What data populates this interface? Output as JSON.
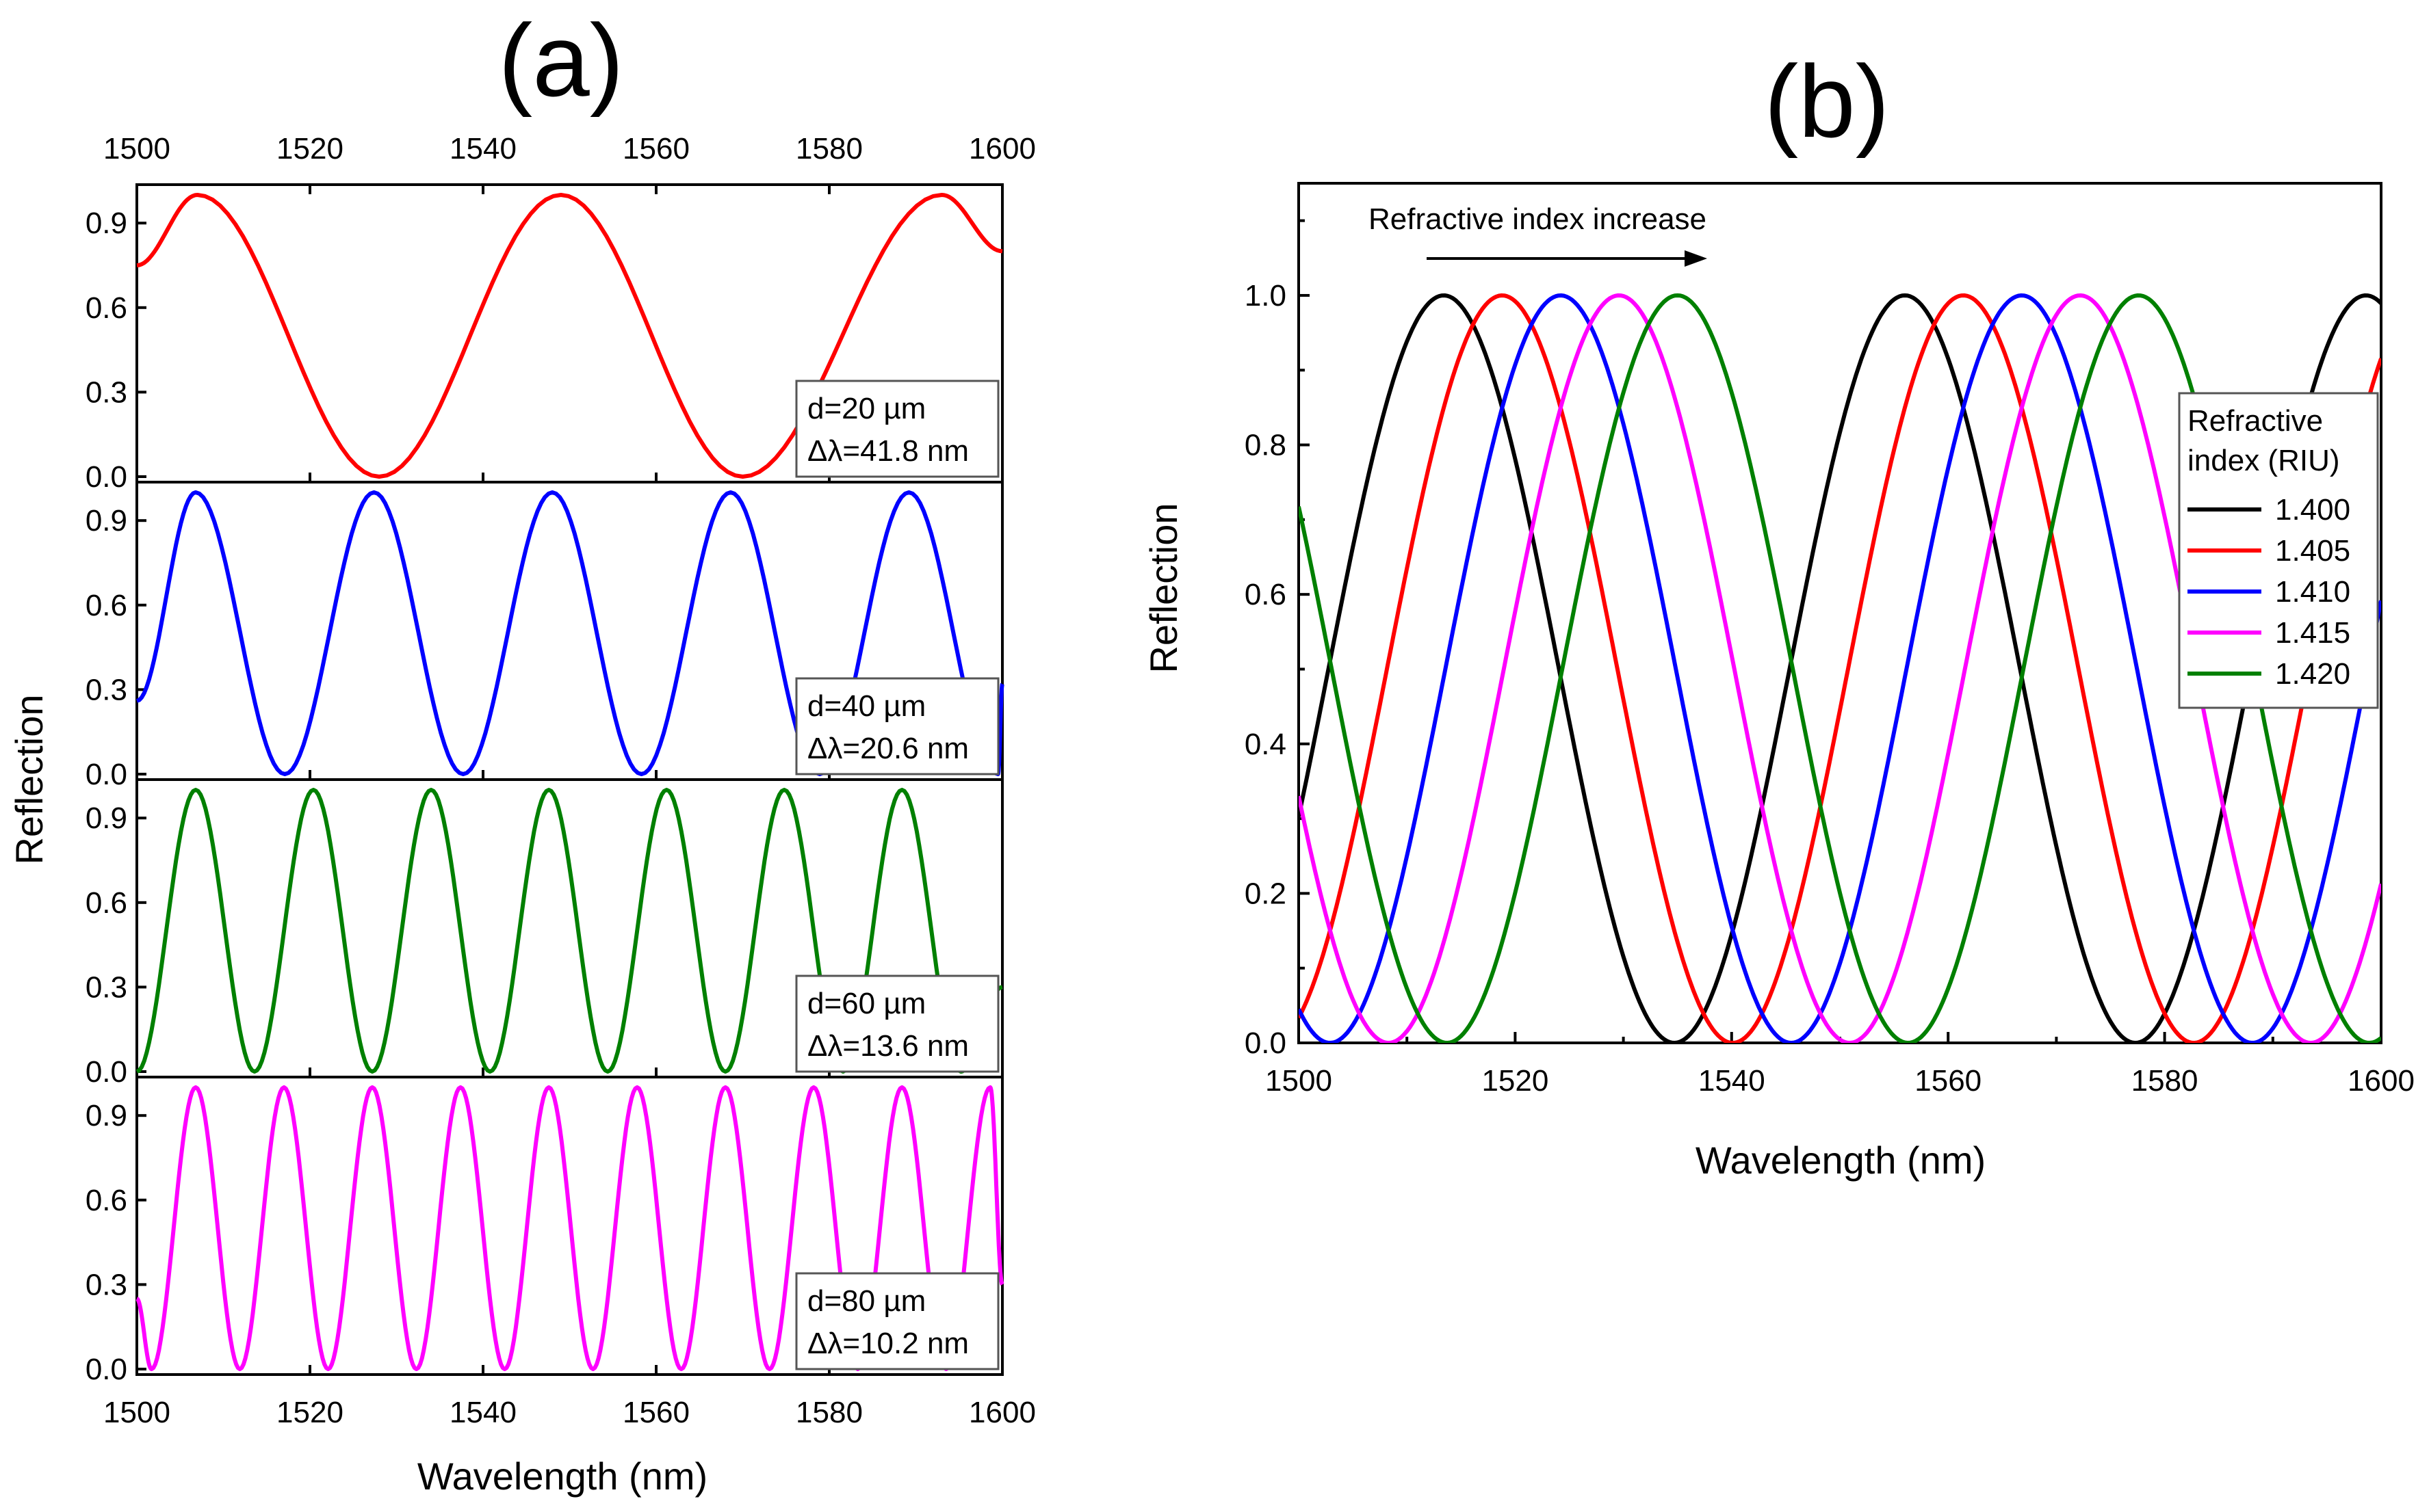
{
  "chart_data": [
    {
      "panel_label": "(a)",
      "type": "line",
      "xlabel": "Wavelength (nm)",
      "ylabel": "Reflection",
      "xlim": [
        1500,
        1600
      ],
      "xticks": [
        1500,
        1520,
        1540,
        1560,
        1580,
        1600
      ],
      "yticks": [
        0.0,
        0.3,
        0.6,
        0.9
      ],
      "ylim": [
        0,
        1
      ],
      "subplots": [
        {
          "color": "#ff0000",
          "annotation": [
            "d=20 µm",
            "Δλ=41.8 nm"
          ],
          "x": [
            1500,
            1507,
            1528,
            1549,
            1570,
            1593,
            1600
          ],
          "y": [
            0.75,
            1.0,
            0.0,
            1.0,
            0.0,
            1.0,
            0.8
          ]
        },
        {
          "color": "#0000ff",
          "annotation": [
            "d=40 µm",
            "Δλ=20.6 nm"
          ],
          "x": [
            1500,
            1506.8,
            1517.1,
            1527.4,
            1537.7,
            1548.0,
            1558.3,
            1568.6,
            1578.9,
            1589.2,
            1599.5,
            1600
          ],
          "y": [
            0.26,
            1.0,
            0.0,
            1.0,
            0.0,
            1.0,
            0.0,
            1.0,
            0.0,
            1.0,
            0.0,
            0.32
          ]
        },
        {
          "color": "#008000",
          "annotation": [
            "d=60 µm",
            "Δλ=13.6 nm"
          ],
          "x": [
            1500,
            1506.8,
            1513.6,
            1520.4,
            1527.2,
            1534.0,
            1540.8,
            1547.6,
            1554.4,
            1561.2,
            1568.0,
            1574.8,
            1581.6,
            1588.4,
            1595.2,
            1600
          ],
          "y": [
            0.0,
            1.0,
            0.0,
            1.0,
            0.0,
            1.0,
            0.0,
            1.0,
            0.0,
            1.0,
            0.0,
            1.0,
            0.0,
            1.0,
            0.0,
            0.3
          ]
        },
        {
          "color": "#ff00ff",
          "annotation": [
            "d=80 µm",
            "Δλ=10.2 nm"
          ],
          "x": [
            1500,
            1501.7,
            1506.8,
            1511.9,
            1517.0,
            1522.1,
            1527.2,
            1532.3,
            1537.4,
            1542.5,
            1547.6,
            1552.7,
            1557.8,
            1562.9,
            1568.0,
            1573.1,
            1578.2,
            1583.3,
            1588.4,
            1593.5,
            1598.6,
            1600
          ],
          "y": [
            0.25,
            0.0,
            1.0,
            0.0,
            1.0,
            0.0,
            1.0,
            0.0,
            1.0,
            0.0,
            1.0,
            0.0,
            1.0,
            0.0,
            1.0,
            0.0,
            1.0,
            0.0,
            1.0,
            0.0,
            1.0,
            0.3
          ]
        }
      ]
    },
    {
      "panel_label": "(b)",
      "type": "line",
      "xlabel": "Wavelength (nm)",
      "ylabel": "Reflection",
      "xlim": [
        1500,
        1600
      ],
      "ylim": [
        0,
        1.15
      ],
      "xticks": [
        1500,
        1520,
        1540,
        1560,
        1580,
        1600
      ],
      "yticks": [
        0.0,
        0.2,
        0.4,
        0.6,
        0.8,
        1.0
      ],
      "annotation": "Refractive index increase",
      "legend_title": [
        "Refractive",
        "index (RIU)"
      ],
      "legend_position": "right",
      "period_nm": 42.6,
      "series": [
        {
          "name": "1.400",
          "color": "#000000",
          "first_peak_nm": 1513.4
        },
        {
          "name": "1.405",
          "color": "#ff0000",
          "first_peak_nm": 1518.8
        },
        {
          "name": "1.410",
          "color": "#0000ff",
          "first_peak_nm": 1524.2
        },
        {
          "name": "1.415",
          "color": "#ff00ff",
          "first_peak_nm": 1529.6
        },
        {
          "name": "1.420",
          "color": "#008000",
          "first_peak_nm": 1535.0
        }
      ]
    }
  ]
}
